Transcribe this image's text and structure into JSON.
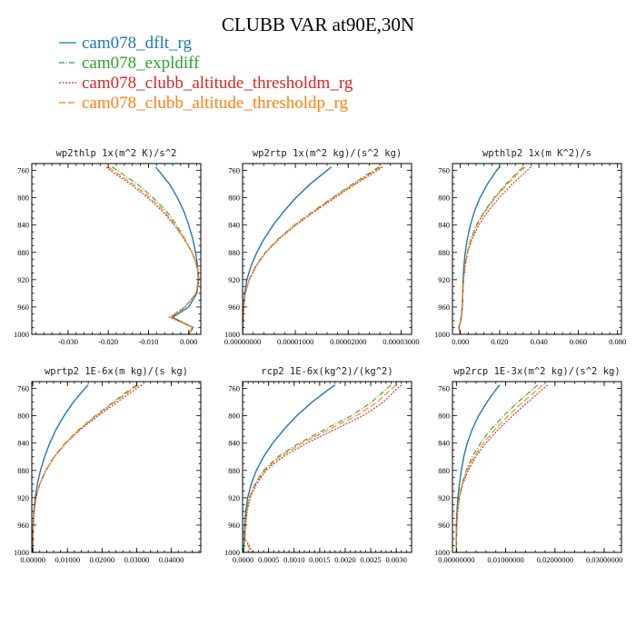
{
  "figure": {
    "title": "CLUBB VAR at90E,30N"
  },
  "colors": {
    "cam078_dflt_rg": "#1f77b4",
    "cam078_expldiff": "#2ca02c",
    "cam078_clubb_altitude_thresholdm_rg": "#d62728",
    "cam078_clubb_altitude_thresholdp_rg": "#ff7f0e"
  },
  "chart_data": [
    {
      "type": "line",
      "title": "wp2thlp  1x(m^2 K)/s^2",
      "xlim": [
        -0.039,
        0.003
      ],
      "ylim": [
        1000,
        750
      ],
      "xticks": [
        -0.03,
        -0.02,
        -0.01,
        0.0
      ],
      "xtick_labels": [
        "-0.030",
        "-0.020",
        "-0.010",
        "0.000"
      ],
      "yticks": [
        760,
        800,
        840,
        880,
        920,
        960,
        1000
      ],
      "ytick_labels": [
        "760",
        "800",
        "840",
        "880",
        "920",
        "960",
        "1000"
      ],
      "y": [
        755,
        760,
        780,
        800,
        820,
        840,
        860,
        880,
        900,
        920,
        940,
        960,
        975,
        990,
        1000
      ],
      "series": [
        {
          "name": "cam078_dflt_rg",
          "values": [
            -0.0082,
            -0.0075,
            -0.0048,
            -0.0028,
            -0.0012,
            0.0,
            0.001,
            0.0017,
            0.0022,
            0.0024,
            0.002,
            0.0,
            -0.004,
            0.001,
            0.0
          ]
        },
        {
          "name": "cam078_expldiff",
          "values": [
            -0.019,
            -0.0178,
            -0.0128,
            -0.0088,
            -0.0055,
            -0.003,
            -0.001,
            0.0008,
            0.002,
            0.0024,
            0.0018,
            -0.0008,
            -0.0043,
            0.001,
            0.0
          ]
        },
        {
          "name": "cam078_clubb_altitude_thresholdm_rg",
          "values": [
            -0.0205,
            -0.0195,
            -0.0145,
            -0.0102,
            -0.0065,
            -0.0036,
            -0.0012,
            0.0008,
            0.0022,
            0.0026,
            0.0019,
            -0.001,
            -0.0048,
            0.0012,
            0.0
          ]
        },
        {
          "name": "cam078_clubb_altitude_thresholdp_rg",
          "values": [
            -0.02,
            -0.0188,
            -0.0138,
            -0.0096,
            -0.0061,
            -0.0034,
            -0.0011,
            0.0008,
            0.0021,
            0.0025,
            0.0018,
            -0.0009,
            -0.0046,
            0.0011,
            0.0
          ]
        }
      ]
    },
    {
      "type": "line",
      "title": "wp2rtp  1x(m^2 kg)/(s^2 kg)",
      "xlim": [
        0,
        3.2e-05
      ],
      "ylim": [
        1000,
        750
      ],
      "xticks": [
        0,
        1e-05,
        2e-05,
        3e-05
      ],
      "xtick_labels": [
        "0.00000000",
        "0.00001000",
        "0.00002000",
        "0.00003000"
      ],
      "yticks": [
        760,
        800,
        840,
        880,
        920,
        960,
        1000
      ],
      "ytick_labels": [
        "760",
        "800",
        "840",
        "880",
        "920",
        "960",
        "1000"
      ],
      "y": [
        755,
        760,
        780,
        800,
        820,
        840,
        860,
        880,
        900,
        920,
        940,
        960,
        980,
        1000
      ],
      "series": [
        {
          "name": "cam078_dflt_rg",
          "values": [
            1.68e-05,
            1.6e-05,
            1.28e-05,
            1.01e-05,
            7.8e-06,
            5.8e-06,
            4.1e-06,
            2.7e-06,
            1.6e-06,
            8e-07,
            4e-07,
            2e-07,
            1e-07,
            0.0
          ]
        },
        {
          "name": "cam078_expldiff",
          "values": [
            2.58e-05,
            2.48e-05,
            2.08e-05,
            1.7e-05,
            1.33e-05,
            9.8e-06,
            6.8e-06,
            4.3e-06,
            2.5e-06,
            1.2e-06,
            5e-07,
            2e-07,
            1e-07,
            0.0
          ]
        },
        {
          "name": "cam078_clubb_altitude_thresholdm_rg",
          "values": [
            2.65e-05,
            2.55e-05,
            2.14e-05,
            1.75e-05,
            1.37e-05,
            1.01e-05,
            7e-06,
            4.4e-06,
            2.6e-06,
            1.3e-06,
            5e-07,
            2e-07,
            1e-07,
            0.0
          ]
        },
        {
          "name": "cam078_clubb_altitude_thresholdp_rg",
          "values": [
            2.62e-05,
            2.52e-05,
            2.11e-05,
            1.72e-05,
            1.35e-05,
            9.9e-06,
            6.9e-06,
            4.4e-06,
            2.5e-06,
            1.2e-06,
            5e-07,
            2e-07,
            1e-07,
            0.0
          ]
        }
      ]
    },
    {
      "type": "line",
      "title": "wpthlp2  1x(m K^2)/s",
      "xlim": [
        -0.004,
        0.082
      ],
      "ylim": [
        1000,
        750
      ],
      "xticks": [
        0.0,
        0.02,
        0.04,
        0.06,
        0.08
      ],
      "xtick_labels": [
        "0.000",
        "0.020",
        "0.040",
        "0.060",
        "0.080"
      ],
      "yticks": [
        760,
        800,
        840,
        880,
        920,
        960,
        1000
      ],
      "ytick_labels": [
        "760",
        "800",
        "840",
        "880",
        "920",
        "960",
        "1000"
      ],
      "y": [
        755,
        760,
        780,
        800,
        820,
        840,
        860,
        880,
        900,
        920,
        940,
        960,
        980,
        990,
        1000
      ],
      "series": [
        {
          "name": "cam078_dflt_rg",
          "values": [
            0.02,
            0.0185,
            0.0138,
            0.01,
            0.0072,
            0.0051,
            0.0036,
            0.0025,
            0.0018,
            0.0014,
            0.0012,
            0.001,
            0.0002,
            -0.0008,
            0.0
          ]
        },
        {
          "name": "cam078_expldiff",
          "values": [
            0.032,
            0.03,
            0.0232,
            0.0172,
            0.0122,
            0.0082,
            0.0054,
            0.0035,
            0.0023,
            0.0016,
            0.0013,
            0.0011,
            0.0003,
            -0.0008,
            0.0
          ]
        },
        {
          "name": "cam078_clubb_altitude_thresholdm_rg",
          "values": [
            0.036,
            0.034,
            0.0265,
            0.0198,
            0.014,
            0.0094,
            0.0061,
            0.0038,
            0.0025,
            0.0017,
            0.0013,
            0.0011,
            0.0003,
            -0.0008,
            0.0
          ]
        },
        {
          "name": "cam078_clubb_altitude_thresholdp_rg",
          "values": [
            0.033,
            0.031,
            0.024,
            0.0178,
            0.0126,
            0.0085,
            0.0056,
            0.0036,
            0.0024,
            0.0016,
            0.0013,
            0.0011,
            0.0003,
            -0.0008,
            0.0
          ]
        }
      ]
    },
    {
      "type": "line",
      "title": "wprtp2  1E-6x(m kg)/(s kg)",
      "xlim": [
        -0.0003,
        0.0485
      ],
      "ylim": [
        1000,
        750
      ],
      "xticks": [
        0.0,
        0.01,
        0.02,
        0.03,
        0.04
      ],
      "xtick_labels": [
        "0.00000",
        "0.01000",
        "0.02000",
        "0.03000",
        "0.04000"
      ],
      "yticks": [
        760,
        800,
        840,
        880,
        920,
        960,
        1000
      ],
      "ytick_labels": [
        "760",
        "800",
        "840",
        "880",
        "920",
        "960",
        "1000"
      ],
      "y": [
        755,
        760,
        780,
        800,
        820,
        840,
        860,
        880,
        900,
        920,
        940,
        960,
        980,
        1000
      ],
      "series": [
        {
          "name": "cam078_dflt_rg",
          "values": [
            0.016,
            0.015,
            0.0117,
            0.009,
            0.0067,
            0.0049,
            0.0034,
            0.0022,
            0.0013,
            0.0007,
            0.0003,
            0.0001,
            0.0,
            0.0
          ]
        },
        {
          "name": "cam078_expldiff",
          "values": [
            0.03,
            0.0285,
            0.0232,
            0.0181,
            0.0133,
            0.0093,
            0.0061,
            0.0037,
            0.002,
            0.0009,
            0.0004,
            0.0001,
            0.0,
            0.0
          ]
        },
        {
          "name": "cam078_clubb_altitude_thresholdm_rg",
          "values": [
            0.0315,
            0.03,
            0.0244,
            0.0189,
            0.0138,
            0.0096,
            0.0063,
            0.0038,
            0.002,
            0.0009,
            0.0004,
            0.0001,
            0.0,
            0.0
          ]
        },
        {
          "name": "cam078_clubb_altitude_thresholdp_rg",
          "values": [
            0.0305,
            0.029,
            0.0236,
            0.0184,
            0.0135,
            0.0094,
            0.0062,
            0.0037,
            0.002,
            0.0009,
            0.0004,
            0.0001,
            0.0,
            0.0
          ]
        }
      ]
    },
    {
      "type": "line",
      "title": "rcp2  1E-6x(kg^2)/(kg^2)",
      "xlim": [
        -1e-05,
        0.0033
      ],
      "ylim": [
        1000,
        750
      ],
      "xticks": [
        0.0,
        0.0005,
        0.001,
        0.0015,
        0.002,
        0.0025,
        0.003
      ],
      "xtick_labels": [
        "0.0000",
        "0.0005",
        "0.0010",
        "0.0015",
        "0.0020",
        "0.0025",
        "0.0030"
      ],
      "yticks": [
        760,
        800,
        840,
        880,
        920,
        960,
        1000
      ],
      "ytick_labels": [
        "760",
        "800",
        "840",
        "880",
        "920",
        "960",
        "1000"
      ],
      "y": [
        755,
        760,
        780,
        800,
        820,
        840,
        860,
        880,
        900,
        920,
        940,
        960,
        980,
        990,
        1000
      ],
      "series": [
        {
          "name": "cam078_dflt_rg",
          "values": [
            0.0018,
            0.0017,
            0.00135,
            0.00105,
            0.0008,
            0.00058,
            0.0004,
            0.00026,
            0.00016,
            9e-05,
            5e-05,
            3e-05,
            2e-05,
            2e-05,
            1e-05
          ]
        },
        {
          "name": "cam078_expldiff",
          "values": [
            0.0029,
            0.00282,
            0.00252,
            0.00212,
            0.0016,
            0.0011,
            0.00068,
            0.0004,
            0.00023,
            0.00012,
            7e-05,
            4e-05,
            3e-05,
            2e-05,
            1e-05
          ]
        },
        {
          "name": "cam078_clubb_altitude_thresholdm_rg",
          "values": [
            0.0031,
            0.00302,
            0.00275,
            0.00235,
            0.0018,
            0.00125,
            0.00078,
            0.00045,
            0.00026,
            0.00014,
            8e-05,
            5e-05,
            4e-05,
            0.00012,
            0.00018
          ]
        },
        {
          "name": "cam078_clubb_altitude_thresholdp_rg",
          "values": [
            0.003,
            0.00292,
            0.00262,
            0.00222,
            0.00168,
            0.00116,
            0.00072,
            0.00042,
            0.00024,
            0.00013,
            7e-05,
            4e-05,
            3e-05,
            0.0001,
            0.00015
          ]
        }
      ]
    },
    {
      "type": "line",
      "title": "wp2rcp  1E-3x(m^2 kg)/(s^2 kg)",
      "xlim": [
        -0.0008,
        0.0335
      ],
      "ylim": [
        1000,
        750
      ],
      "xticks": [
        0.0,
        0.01,
        0.02,
        0.03
      ],
      "xtick_labels": [
        "0.00000000",
        "0.01000000",
        "0.02000000",
        "0.03000000"
      ],
      "yticks": [
        760,
        800,
        840,
        880,
        920,
        960,
        1000
      ],
      "ytick_labels": [
        "760",
        "800",
        "840",
        "880",
        "920",
        "960",
        "1000"
      ],
      "y": [
        755,
        760,
        780,
        800,
        820,
        840,
        860,
        880,
        900,
        920,
        940,
        960,
        980,
        1000
      ],
      "series": [
        {
          "name": "cam078_dflt_rg",
          "values": [
            0.0088,
            0.0082,
            0.0062,
            0.0045,
            0.0032,
            0.0022,
            0.0015,
            0.001,
            0.0006,
            0.0003,
            0.0001,
            0.0,
            0.0,
            0.0
          ]
        },
        {
          "name": "cam078_expldiff",
          "values": [
            0.0165,
            0.0157,
            0.0125,
            0.0096,
            0.007,
            0.0049,
            0.0032,
            0.002,
            0.0011,
            0.0005,
            0.0002,
            0.0001,
            0.0,
            0.0
          ]
        },
        {
          "name": "cam078_clubb_altitude_thresholdm_rg",
          "values": [
            0.0185,
            0.0177,
            0.0145,
            0.0114,
            0.0085,
            0.006,
            0.0039,
            0.0024,
            0.0013,
            0.0006,
            0.0003,
            0.0001,
            0.0,
            0.0
          ]
        },
        {
          "name": "cam078_clubb_altitude_thresholdp_rg",
          "values": [
            0.0175,
            0.0167,
            0.0135,
            0.0105,
            0.0078,
            0.0055,
            0.0036,
            0.0022,
            0.0012,
            0.0006,
            0.0002,
            0.0001,
            0.0,
            0.0
          ]
        }
      ]
    }
  ]
}
